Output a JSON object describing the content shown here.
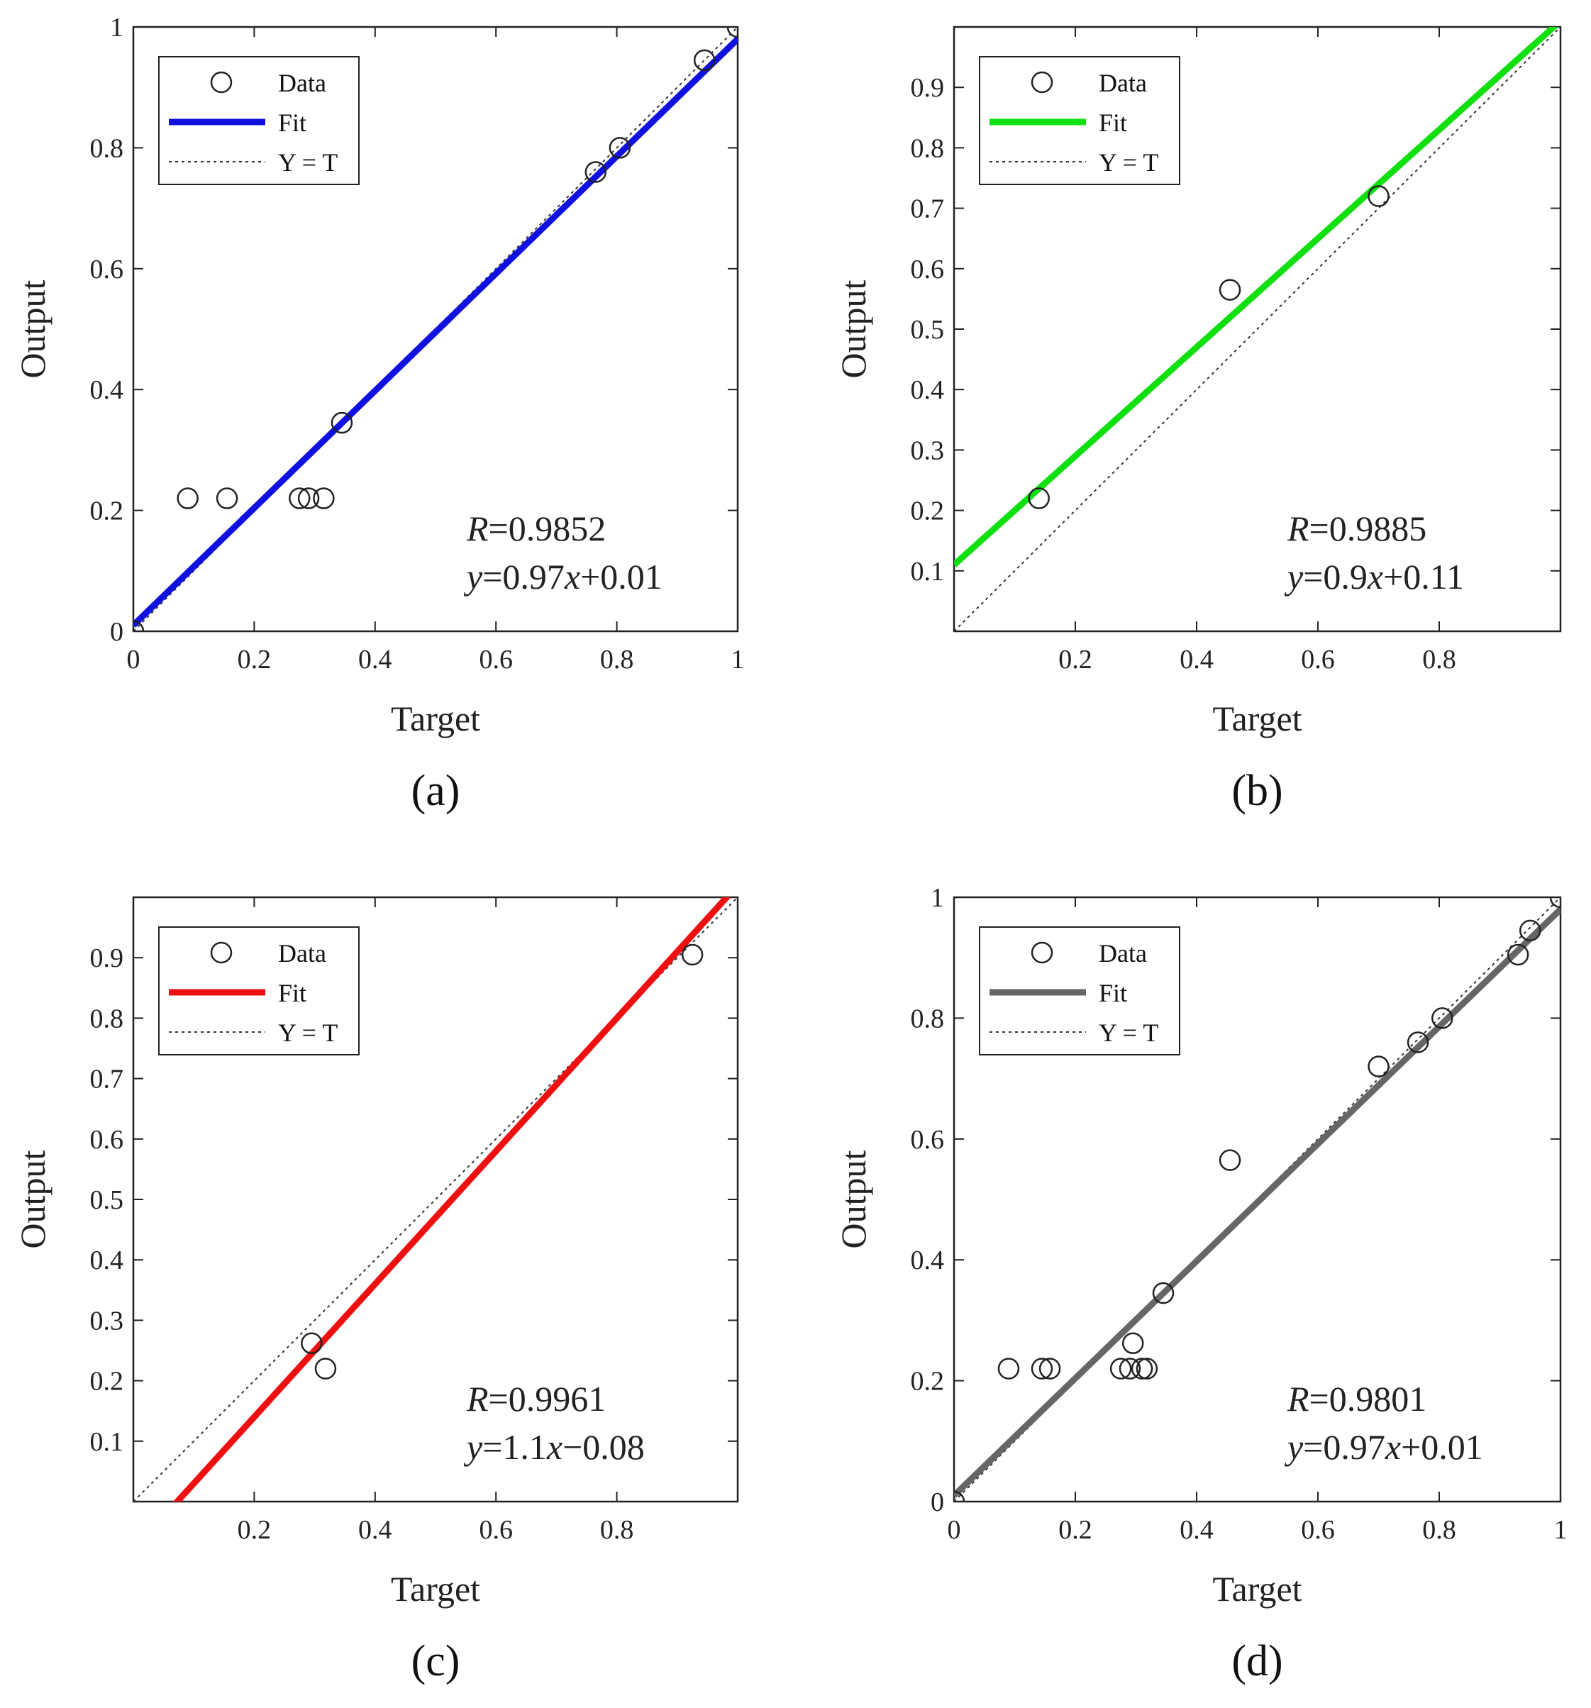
{
  "figure": {
    "legend_labels": {
      "data": "Data",
      "fit": "Fit",
      "yt": "Y = T"
    },
    "colors": {
      "axis": "#222222",
      "marker": "#222222",
      "ref_line": "#333333"
    }
  },
  "chart_data": [
    {
      "type": "scatter",
      "panel": "(a)",
      "xlabel": "Target",
      "ylabel": "Output",
      "xlim": [
        0,
        1
      ],
      "ylim": [
        0,
        1
      ],
      "xticks": [
        "0",
        "0.2",
        "0.4",
        "0.6",
        "0.8",
        "1"
      ],
      "yticks": [
        "0",
        "0.2",
        "0.4",
        "0.6",
        "0.8",
        "1"
      ],
      "fit_color": "#1010e0",
      "fit": {
        "slope": 0.97,
        "intercept": 0.01
      },
      "r_label": "R",
      "r_value": "=0.9852",
      "eq_y": "y",
      "eq_mid": "=0.97",
      "eq_x": "x",
      "eq_tail": "+0.01",
      "points": [
        [
          0,
          0
        ],
        [
          0.09,
          0.22
        ],
        [
          0.155,
          0.22
        ],
        [
          0.275,
          0.22
        ],
        [
          0.29,
          0.22
        ],
        [
          0.315,
          0.22
        ],
        [
          0.345,
          0.345
        ],
        [
          0.765,
          0.76
        ],
        [
          0.805,
          0.8
        ],
        [
          0.945,
          0.945
        ],
        [
          1.0,
          1.0
        ]
      ]
    },
    {
      "type": "scatter",
      "panel": "(b)",
      "xlabel": "Target",
      "ylabel": "Output",
      "xlim": [
        0,
        1
      ],
      "ylim": [
        0,
        1
      ],
      "xticks": [
        "0.2",
        "0.4",
        "0.6",
        "0.8"
      ],
      "yticks": [
        "0.1",
        "0.2",
        "0.3",
        "0.4",
        "0.5",
        "0.6",
        "0.7",
        "0.8",
        "0.9"
      ],
      "fit_color": "#10e010",
      "fit": {
        "slope": 0.9,
        "intercept": 0.11
      },
      "r_label": "R",
      "r_value": "=0.9885",
      "eq_y": "y",
      "eq_mid": "=0.9",
      "eq_x": "x",
      "eq_tail": "+0.11",
      "points": [
        [
          0.14,
          0.22
        ],
        [
          0.455,
          0.565
        ],
        [
          0.7,
          0.72
        ]
      ]
    },
    {
      "type": "scatter",
      "panel": "(c)",
      "xlabel": "Target",
      "ylabel": "Output",
      "xlim": [
        0,
        1
      ],
      "ylim": [
        0,
        1
      ],
      "xticks": [
        "0.2",
        "0.4",
        "0.6",
        "0.8"
      ],
      "yticks": [
        "0.1",
        "0.2",
        "0.3",
        "0.4",
        "0.5",
        "0.6",
        "0.7",
        "0.8",
        "0.9"
      ],
      "fit_color": "#ee1010",
      "fit": {
        "slope": 1.1,
        "intercept": -0.08
      },
      "r_label": "R",
      "r_value": "=0.9961",
      "eq_y": "y",
      "eq_mid": "=1.1",
      "eq_x": "x",
      "eq_tail": "−0.08",
      "points": [
        [
          0.295,
          0.262
        ],
        [
          0.318,
          0.22
        ],
        [
          0.925,
          0.905
        ]
      ]
    },
    {
      "type": "scatter",
      "panel": "(d)",
      "xlabel": "Target",
      "ylabel": "Output",
      "xlim": [
        0,
        1
      ],
      "ylim": [
        0,
        1
      ],
      "xticks": [
        "0",
        "0.2",
        "0.4",
        "0.6",
        "0.8",
        "1"
      ],
      "yticks": [
        "0",
        "0.2",
        "0.4",
        "0.6",
        "0.8",
        "1"
      ],
      "fit_color": "#666666",
      "fit": {
        "slope": 0.97,
        "intercept": 0.01
      },
      "r_label": "R",
      "r_value": "=0.9801",
      "eq_y": "y",
      "eq_mid": "=0.97",
      "eq_x": "x",
      "eq_tail": "+0.01",
      "points": [
        [
          0,
          0
        ],
        [
          0.09,
          0.22
        ],
        [
          0.145,
          0.22
        ],
        [
          0.158,
          0.22
        ],
        [
          0.275,
          0.22
        ],
        [
          0.29,
          0.22
        ],
        [
          0.295,
          0.262
        ],
        [
          0.31,
          0.22
        ],
        [
          0.318,
          0.22
        ],
        [
          0.345,
          0.345
        ],
        [
          0.455,
          0.565
        ],
        [
          0.7,
          0.72
        ],
        [
          0.765,
          0.76
        ],
        [
          0.805,
          0.8
        ],
        [
          0.93,
          0.905
        ],
        [
          0.95,
          0.945
        ],
        [
          1.0,
          1.0
        ]
      ]
    }
  ]
}
